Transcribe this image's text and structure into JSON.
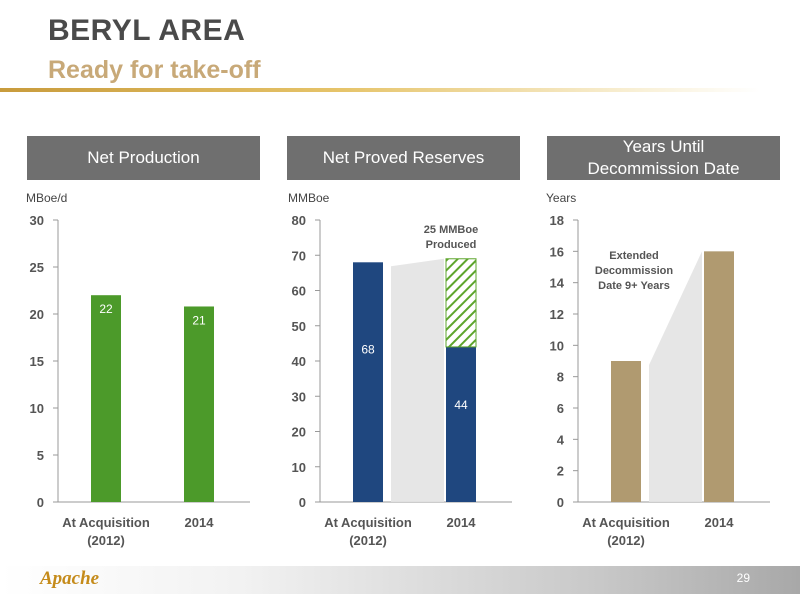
{
  "slide": {
    "title": "BERYL AREA",
    "subtitle": "Ready for take-off",
    "page_number": "29",
    "logo_text": "Apache"
  },
  "colors": {
    "header_bg": "#6f6f6f",
    "production_bar": "#4c9a2a",
    "reserves_bar": "#1f477f",
    "decommission_bar": "#b09a70",
    "produced_hatch": "#5ea52d",
    "accent_gold": "#c89b3c"
  },
  "chart_data": [
    {
      "type": "bar",
      "title": "Net Production",
      "ylabel": "MBoe/d",
      "categories": [
        "At Acquisition (2012)",
        "2014"
      ],
      "category_lines": [
        [
          "At Acquisition",
          "(2012)"
        ],
        [
          "2014"
        ]
      ],
      "values": [
        22,
        20.8
      ],
      "value_labels": [
        "22",
        "21"
      ],
      "ylim": [
        0,
        30
      ],
      "yticks": [
        0,
        5,
        10,
        15,
        20,
        25,
        30
      ],
      "color": "#4c9a2a",
      "label_color": "#ffffff",
      "label_position": "top-inside",
      "grid": false,
      "legend": "none"
    },
    {
      "type": "bar",
      "title": "Net Proved Reserves",
      "ylabel": "MMBoe",
      "categories": [
        "At Acquisition (2012)",
        "2014"
      ],
      "category_lines": [
        [
          "At Acquisition",
          "(2012)"
        ],
        [
          "2014"
        ]
      ],
      "values": [
        68,
        44
      ],
      "value_labels": [
        "68",
        "44"
      ],
      "produced": {
        "value": 25,
        "category_index": 1,
        "label_lines": [
          "25 MMBoe",
          "Produced"
        ]
      },
      "ylim": [
        0,
        80
      ],
      "yticks": [
        0,
        10,
        20,
        30,
        40,
        50,
        60,
        70,
        80
      ],
      "color": "#1f477f",
      "label_color": "#ffffff",
      "label_position": "middle-inside",
      "connector": true,
      "grid": false,
      "legend": "none"
    },
    {
      "type": "bar",
      "title": "Years Until Decommission Date",
      "title_lines": [
        "Years Until",
        "Decommission Date"
      ],
      "ylabel": "Years",
      "categories": [
        "At Acquisition (2012)",
        "2014"
      ],
      "category_lines": [
        [
          "At Acquisition",
          "(2012)"
        ],
        [
          "2014"
        ]
      ],
      "values": [
        9,
        16
      ],
      "annotation_lines": [
        "Extended",
        "Decommission",
        "Date 9+ Years"
      ],
      "ylim": [
        0,
        18
      ],
      "yticks": [
        0,
        2,
        4,
        6,
        8,
        10,
        12,
        14,
        16,
        18
      ],
      "color": "#b09a70",
      "connector": true,
      "grid": false,
      "legend": "none"
    }
  ]
}
